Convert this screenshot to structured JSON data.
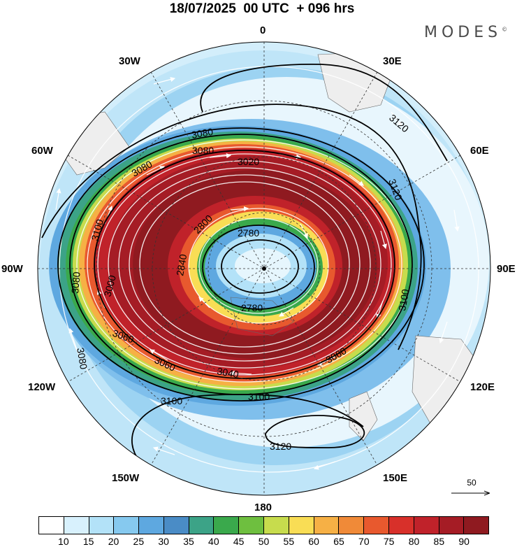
{
  "title": "18/07/2025  00 UTC  + 096 hrs",
  "brand": "MODES",
  "brand_mark": "©",
  "longitudes": {
    "top": "0",
    "bottom": "180",
    "left": "90W",
    "right": "90E",
    "nw30": "30W",
    "nw60": "60W",
    "sw120": "120W",
    "sw150": "150W",
    "ne30": "30E",
    "ne60": "60E",
    "se120": "120E",
    "se150": "150E"
  },
  "contour_labels": [
    "3120",
    "3120",
    "3120",
    "3080",
    "3080",
    "3080",
    "3080",
    "3080",
    "3060",
    "3060",
    "3060",
    "3040",
    "3100",
    "3100",
    "3100",
    "3100",
    "2780",
    "2780",
    "2800",
    "2840",
    "3000",
    "3020"
  ],
  "reference_vector": {
    "value": "50"
  },
  "colorbar": {
    "colors": [
      "#ffffff",
      "#d8f1fd",
      "#b3e2f8",
      "#86c9ef",
      "#5ea8e0",
      "#4a8cc6",
      "#3ca387",
      "#3aa94c",
      "#6ebf3f",
      "#c7dc4d",
      "#f9dd55",
      "#f6b045",
      "#f08a38",
      "#e8592e",
      "#d8302a",
      "#c0222a",
      "#a51c25",
      "#8f1a20"
    ],
    "labels": [
      "10",
      "15",
      "20",
      "25",
      "30",
      "35",
      "40",
      "45",
      "50",
      "55",
      "60",
      "65",
      "70",
      "75",
      "80",
      "85",
      "90"
    ]
  }
}
